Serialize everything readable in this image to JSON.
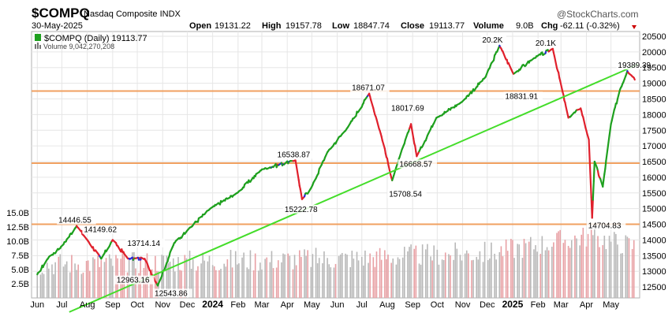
{
  "header": {
    "symbol": "$COMPQ",
    "name": "Nasdaq Composite INDX",
    "date": "30-May-2025",
    "open_label": "Open",
    "open": "19131.22",
    "high_label": "High",
    "high": "19157.78",
    "low_label": "Low",
    "low": "18847.74",
    "close_label": "Close",
    "close": "19113.77",
    "volume_label": "Volume",
    "volume": "9.0B",
    "chg_label": "Chg",
    "chg": "-62.11 (-0.32%)",
    "brand": "@StockCharts.com"
  },
  "legend": {
    "price": "$COMPQ (Daily) 19113.77",
    "volume": "Volume 9,042,270,208"
  },
  "colors": {
    "up": "#1ea01e",
    "down": "#e0202c",
    "neutral": "#2b2bd8",
    "trendline": "#44dd2a",
    "support": "#f0a060",
    "volume_up": "#b8b8b8",
    "volume_down": "#e8a0a4",
    "grid": "#e6e6e6"
  },
  "chart_data": {
    "type": "line",
    "title": "$COMPQ (Daily)",
    "xlabel": "",
    "ylabel": "",
    "x_axis_labels": [
      "Jun",
      "Jul",
      "Aug",
      "Sep",
      "Oct",
      "Nov",
      "Dec",
      "2024",
      "Feb",
      "Mar",
      "Apr",
      "May",
      "Jun",
      "Jul",
      "Aug",
      "Sep",
      "Oct",
      "Nov",
      "Dec",
      "2025",
      "Feb",
      "Mar",
      "Apr",
      "May"
    ],
    "y_axis_labels": [
      "12500",
      "13000",
      "13500",
      "14000",
      "14500",
      "15000",
      "15500",
      "16000",
      "16500",
      "17000",
      "17500",
      "18000",
      "18500",
      "19000",
      "19500",
      "20000",
      "20500"
    ],
    "ylim": [
      12150,
      20650
    ],
    "volume_axis_labels": [
      "2.5B",
      "5.0B",
      "7.5B",
      "10.0B",
      "12.5B",
      "15.0B"
    ],
    "volume_ylim": [
      0,
      15
    ],
    "series": [
      {
        "x": [
          "2023-06-01",
          "2023-06-15",
          "2023-07-01",
          "2023-07-19",
          "2023-08-01",
          "2023-08-18",
          "2023-09-01",
          "2023-09-20",
          "2023-10-10",
          "2023-10-26",
          "2023-11-15",
          "2023-12-01",
          "2023-12-29",
          "2024-01-31",
          "2024-03-01",
          "2024-04-11",
          "2024-04-19",
          "2024-05-01",
          "2024-05-20",
          "2024-06-14",
          "2024-07-10",
          "2024-07-25",
          "2024-08-07",
          "2024-08-30",
          "2024-09-06",
          "2024-09-30",
          "2024-10-31",
          "2024-11-29",
          "2024-12-16",
          "2025-01-02",
          "2025-01-27",
          "2025-02-19",
          "2025-03-10",
          "2025-03-25",
          "2025-04-04",
          "2025-04-08",
          "2025-04-11",
          "2025-04-21",
          "2025-05-01",
          "2025-05-12",
          "2025-05-21",
          "2025-05-28",
          "2025-05-30"
        ],
        "y": [
          12900,
          13450,
          13800,
          14446.55,
          14000,
          13400,
          14000,
          13400,
          13400,
          12543.86,
          13900,
          14300,
          15000,
          15500,
          16250,
          16538.87,
          15300,
          15700,
          16800,
          17600,
          18671.07,
          17300,
          15900,
          17700,
          16668.57,
          17900,
          18400,
          19200,
          20200,
          19300,
          19800,
          20100,
          17900,
          18200,
          17200,
          14704.83,
          16500,
          15700,
          17700,
          18800,
          19389.39,
          19200,
          19113.77
        ]
      }
    ],
    "annotations": [
      {
        "label": "14446.55",
        "x": "2023-07-18",
        "y": 14446.55
      },
      {
        "label": "14149.62",
        "x": "2023-08-18",
        "y": 14149.62
      },
      {
        "label": "13714.14",
        "x": "2023-10-10",
        "y": 13714.14
      },
      {
        "label": "12963.16",
        "x": "2023-09-27",
        "y": 12963.16
      },
      {
        "label": "12543.86",
        "x": "2023-10-26",
        "y": 12543.86
      },
      {
        "label": "16538.87",
        "x": "2024-04-10",
        "y": 16538.87
      },
      {
        "label": "15222.78",
        "x": "2024-04-19",
        "y": 15222.78
      },
      {
        "label": "18671.07",
        "x": "2024-07-10",
        "y": 18671.07
      },
      {
        "label": "18017.69",
        "x": "2024-08-27",
        "y": 18017.69
      },
      {
        "label": "16668.57",
        "x": "2024-09-06",
        "y": 16668.57
      },
      {
        "label": "15708.54",
        "x": "2024-08-07",
        "y": 15708.54
      },
      {
        "label": "20.2K",
        "x": "2024-12-16",
        "y": 20200
      },
      {
        "label": "20.1K",
        "x": "2025-02-19",
        "y": 20100
      },
      {
        "label": "18831.91",
        "x": "2025-01-13",
        "y": 18831.91
      },
      {
        "label": "19389.39",
        "x": "2025-05-21",
        "y": 19389.39
      },
      {
        "label": "14704.83",
        "x": "2025-04-07",
        "y": 14704.83
      }
    ],
    "support_levels": [
      18750,
      16450,
      14500
    ],
    "trendline": {
      "from": {
        "x": "2023-07-10",
        "y": 11700
      },
      "to": {
        "x": "2025-06-03",
        "y": 19600
      }
    },
    "grid": true,
    "legend_position": "top-left"
  }
}
